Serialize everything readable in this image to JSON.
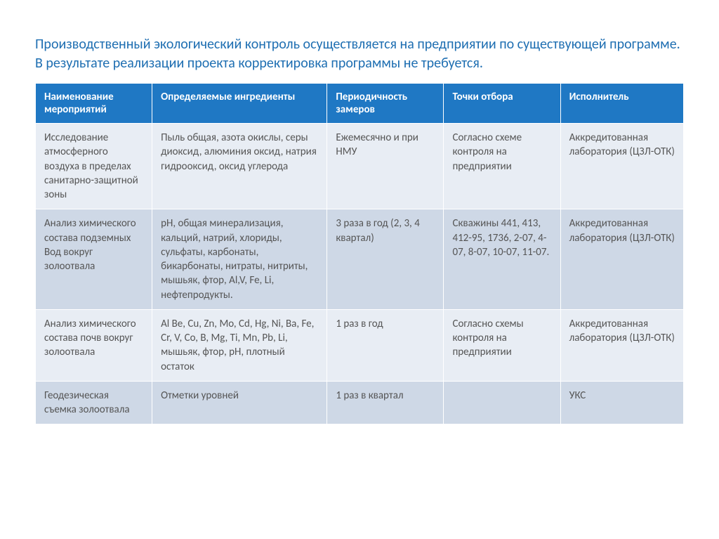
{
  "title_line1": "Производственный экологический контроль осуществляется на предприятии по существующей программе.",
  "title_line2": "В результате реализации проекта корректировка программы не требуется.",
  "table": {
    "columns": [
      "Наименование мероприятий",
      "Определяемые ингредиенты",
      "Периодичность замеров",
      "Точки отбора",
      "Исполнитель"
    ],
    "rows": [
      [
        "Исследование атмосферного воздуха в пределах санитарно-защитной зоны",
        "Пыль общая, азота окислы, серы диоксид, алюминия оксид, натрия гидрооксид, оксид углерода",
        "Ежемесячно и при НМУ",
        "Согласно схеме контроля на предприятии",
        "Аккредитованная лаборатория (ЦЗЛ-ОТК)"
      ],
      [
        "Анализ химического состава подземных\nВод вокруг золоотвала",
        "pH, общая минерализация, кальций, натрий, хлориды, сульфаты, карбонаты, бикарбонаты, нитраты, нитриты, мышьяк, фтор, Al,V, Fe, Li, нефтепродукты.",
        "3 раза в год (2, 3, 4 квартал)",
        "Скважины 441, 413, 412-95, 1736, 2-07, 4-07, 8-07, 10-07, 11-07.",
        "Аккредитованная лаборатория (ЦЗЛ-ОТК)"
      ],
      [
        "Анализ химического состава почв вокруг золоотвала",
        "Al Be, Cu, Zn, Mo, Cd, Hg, Ni, Ba, Fe, Cr, V, Co, B, Mg, Ti, Mn, Pb, Li, мышьяк, фтор, pH, плотный остаток",
        "1 раз в год",
        "Согласно схемы контроля на предприятии",
        "Аккредитованная лаборатория (ЦЗЛ-ОТК)"
      ],
      [
        "Геодезическая съемка золоотвала",
        "Отметки уровней",
        "1 раз в квартал",
        "",
        "УКС"
      ]
    ],
    "header_bg": "#1f78c4",
    "header_fg": "#ffffff",
    "row_odd_bg": "#e8edf4",
    "row_even_bg": "#ced8e6",
    "cell_fg": "#555555",
    "title_color": "#1f6fb2",
    "col_widths_pct": [
      18,
      27,
      18,
      18,
      19
    ],
    "font_size_title": 20,
    "font_size_cell": 15
  }
}
